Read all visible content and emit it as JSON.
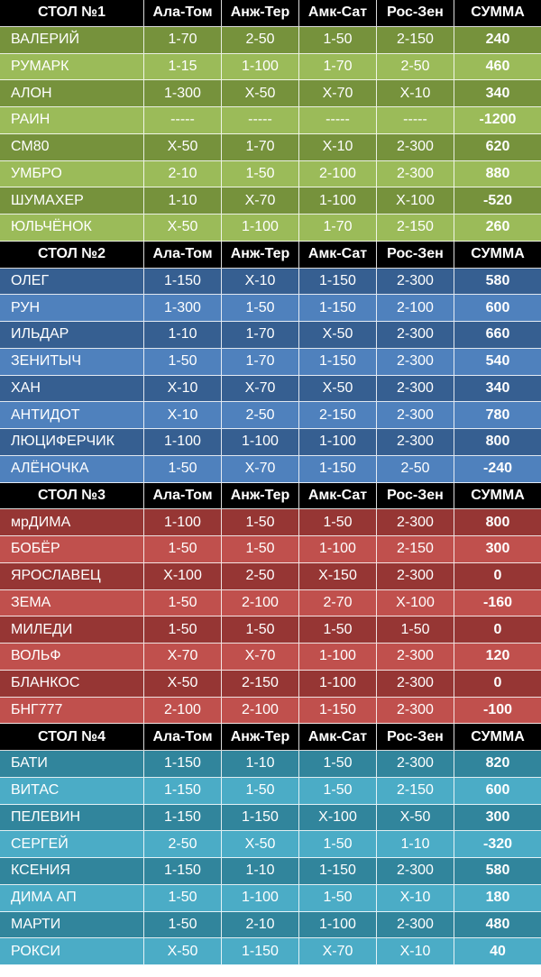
{
  "tables": [
    {
      "title": "СТОЛ №1",
      "columns": [
        "Ала-Том",
        "Анж-Тер",
        "Амк-Сат",
        "Рос-Зен",
        "СУММА"
      ],
      "colors": [
        "#76923c",
        "#9bbb59"
      ],
      "rows": [
        {
          "name": "ВАЛЕРИЙ",
          "picks": [
            "1-70",
            "2-50",
            "1-50",
            "2-150"
          ],
          "sum": "240"
        },
        {
          "name": "РУМАРК",
          "picks": [
            "1-15",
            "1-100",
            "1-70",
            "2-50"
          ],
          "sum": "460"
        },
        {
          "name": "АЛОН",
          "picks": [
            "1-300",
            "Х-50",
            "Х-70",
            "Х-10"
          ],
          "sum": "340"
        },
        {
          "name": "РАИН",
          "picks": [
            "-----",
            "-----",
            "-----",
            "-----"
          ],
          "sum": "-1200"
        },
        {
          "name": "СМ80",
          "picks": [
            "Х-50",
            "1-70",
            "Х-10",
            "2-300"
          ],
          "sum": "620"
        },
        {
          "name": "УМБРО",
          "picks": [
            "2-10",
            "1-50",
            "2-100",
            "2-300"
          ],
          "sum": "880"
        },
        {
          "name": "ШУМАХЕР",
          "picks": [
            "1-10",
            "Х-70",
            "1-100",
            "Х-100"
          ],
          "sum": "-520"
        },
        {
          "name": "ЮЛЬЧЁНОК",
          "picks": [
            "Х-50",
            "1-100",
            "1-70",
            "2-150"
          ],
          "sum": "260"
        }
      ]
    },
    {
      "title": "СТОЛ №2",
      "columns": [
        "Ала-Том",
        "Анж-Тер",
        "Амк-Сат",
        "Рос-Зен",
        "СУММА"
      ],
      "colors": [
        "#365f91",
        "#4f81bd"
      ],
      "rows": [
        {
          "name": "ОЛЕГ",
          "picks": [
            "1-150",
            "Х-10",
            "1-150",
            "2-300"
          ],
          "sum": "580"
        },
        {
          "name": "РУН",
          "picks": [
            "1-300",
            "1-50",
            "1-150",
            "2-100"
          ],
          "sum": "600"
        },
        {
          "name": "ИЛЬДАР",
          "picks": [
            "1-10",
            "1-70",
            "Х-50",
            "2-300"
          ],
          "sum": "660"
        },
        {
          "name": "ЗЕНИТЫЧ",
          "picks": [
            "1-50",
            "1-70",
            "1-150",
            "2-300"
          ],
          "sum": "540"
        },
        {
          "name": "ХАН",
          "picks": [
            "Х-10",
            "Х-70",
            "Х-50",
            "2-300"
          ],
          "sum": "340"
        },
        {
          "name": "АНТИДОТ",
          "picks": [
            "Х-10",
            "2-50",
            "2-150",
            "2-300"
          ],
          "sum": "780"
        },
        {
          "name": "ЛЮЦИФЕРЧИК",
          "picks": [
            "1-100",
            "1-100",
            "1-100",
            "2-300"
          ],
          "sum": "800"
        },
        {
          "name": "АЛЁНОЧКА",
          "picks": [
            "1-50",
            "Х-70",
            "1-150",
            "2-50"
          ],
          "sum": "-240"
        }
      ]
    },
    {
      "title": "СТОЛ №3",
      "columns": [
        "Ала-Том",
        "Анж-Тер",
        "Амк-Сат",
        "Рос-Зен",
        "СУММА"
      ],
      "colors": [
        "#963634",
        "#c0504d"
      ],
      "rows": [
        {
          "name": "мрДИМА",
          "picks": [
            "1-100",
            "1-50",
            "1-50",
            "2-300"
          ],
          "sum": "800"
        },
        {
          "name": "БОБЁР",
          "picks": [
            "1-50",
            "1-50",
            "1-100",
            "2-150"
          ],
          "sum": "300"
        },
        {
          "name": "ЯРОСЛАВЕЦ",
          "picks": [
            "Х-100",
            "2-50",
            "Х-150",
            "2-300"
          ],
          "sum": "0"
        },
        {
          "name": "ЗЕМА",
          "picks": [
            "1-50",
            "2-100",
            "2-70",
            "Х-100"
          ],
          "sum": "-160"
        },
        {
          "name": "МИЛЕДИ",
          "picks": [
            "1-50",
            "1-50",
            "1-50",
            "1-50"
          ],
          "sum": "0"
        },
        {
          "name": "ВОЛЬФ",
          "picks": [
            "Х-70",
            "Х-70",
            "1-100",
            "2-300"
          ],
          "sum": "120"
        },
        {
          "name": "БЛАНКОС",
          "picks": [
            "Х-50",
            "2-150",
            "1-100",
            "2-300"
          ],
          "sum": "0"
        },
        {
          "name": "БНГ777",
          "picks": [
            "2-100",
            "2-100",
            "1-150",
            "2-300"
          ],
          "sum": "-100"
        }
      ]
    },
    {
      "title": "СТОЛ №4",
      "columns": [
        "Ала-Том",
        "Анж-Тер",
        "Амк-Сат",
        "Рос-Зен",
        "СУММА"
      ],
      "colors": [
        "#31859c",
        "#4bacc6"
      ],
      "rows": [
        {
          "name": "БАТИ",
          "picks": [
            "1-150",
            "1-10",
            "1-50",
            "2-300"
          ],
          "sum": "820"
        },
        {
          "name": "ВИТАС",
          "picks": [
            "1-150",
            "1-50",
            "1-50",
            "2-150"
          ],
          "sum": "600"
        },
        {
          "name": "ПЕЛЕВИН",
          "picks": [
            "1-150",
            "1-150",
            "Х-100",
            "Х-50"
          ],
          "sum": "300"
        },
        {
          "name": "СЕРГЕЙ",
          "picks": [
            "2-50",
            "Х-50",
            "1-50",
            "1-10"
          ],
          "sum": "-320"
        },
        {
          "name": "КСЕНИЯ",
          "picks": [
            "1-150",
            "1-10",
            "1-150",
            "2-300"
          ],
          "sum": "580"
        },
        {
          "name": "ДИМА АП",
          "picks": [
            "1-50",
            "1-100",
            "1-50",
            "Х-10"
          ],
          "sum": "180"
        },
        {
          "name": "МАРТИ",
          "picks": [
            "1-50",
            "2-10",
            "1-100",
            "2-300"
          ],
          "sum": "480"
        },
        {
          "name": "РОКСИ",
          "picks": [
            "Х-50",
            "1-150",
            "Х-70",
            "Х-10"
          ],
          "sum": "40"
        }
      ]
    }
  ]
}
